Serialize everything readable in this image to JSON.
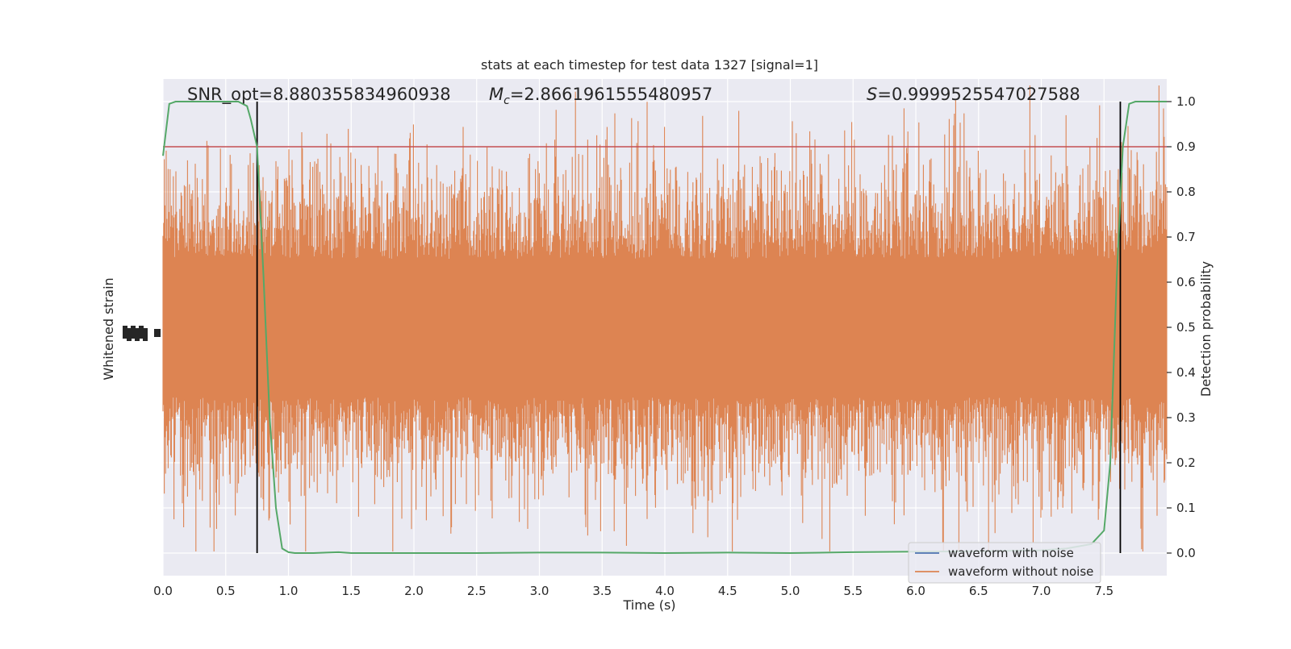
{
  "chart_data": {
    "type": "line",
    "title": "stats at each timestep for test data 1327 [signal=1]",
    "xlabel": "Time (s)",
    "ylabel_left": "Whitened strain",
    "ylabel_right": "Detection probability",
    "xlim": [
      0.0,
      8.0
    ],
    "ylim_right": [
      -0.05,
      1.05
    ],
    "x_ticks": [
      "0.0",
      "0.5",
      "1.0",
      "1.5",
      "2.0",
      "2.5",
      "3.0",
      "3.5",
      "4.0",
      "4.5",
      "5.0",
      "5.5",
      "6.0",
      "6.5",
      "7.0",
      "7.5"
    ],
    "y_ticks_right": [
      "0.0",
      "0.1",
      "0.2",
      "0.3",
      "0.4",
      "0.5",
      "0.6",
      "0.7",
      "0.8",
      "0.9",
      "1.0"
    ],
    "grid": true,
    "annotations": {
      "snr": "SNR_opt=8.880355834960938",
      "mc_symbol": "M",
      "mc_sub": "c",
      "mc_value": "=2.8661961555480957",
      "s_symbol": "S",
      "s_value": "=0.9999525547027588"
    },
    "threshold": 0.9,
    "vlines_x": [
      0.75,
      7.63
    ],
    "colors": {
      "background": "#eaeaf2",
      "grid": "#ffffff",
      "waveform_with_noise": "#4c72b0",
      "waveform_without_noise": "#dd8452",
      "probability": "#55a868",
      "threshold": "#c44e52",
      "vline": "#000000"
    },
    "series": [
      {
        "name": "waveform with noise",
        "values": []
      },
      {
        "name": "waveform without noise",
        "values": []
      },
      {
        "x": [
          0.0,
          0.05,
          0.1,
          0.2,
          0.3,
          0.4,
          0.5,
          0.6,
          0.67,
          0.7,
          0.75,
          0.8,
          0.85,
          0.9,
          0.95,
          1.0,
          1.05,
          1.1,
          1.2,
          1.3,
          1.4,
          1.5,
          2.0,
          2.5,
          3.0,
          3.5,
          4.0,
          4.5,
          5.0,
          5.5,
          6.0,
          6.5,
          7.0,
          7.2,
          7.3,
          7.4,
          7.5,
          7.55,
          7.6,
          7.65,
          7.7,
          7.75,
          7.8,
          7.9,
          8.0
        ],
        "values": [
          0.88,
          0.995,
          1.0,
          1.0,
          1.0,
          1.0,
          1.0,
          1.0,
          0.99,
          0.96,
          0.9,
          0.62,
          0.3,
          0.1,
          0.01,
          0.002,
          0.0,
          0.0,
          0.0,
          0.001,
          0.002,
          0.0,
          0.0,
          0.0,
          0.001,
          0.001,
          0.0,
          0.001,
          0.0,
          0.002,
          0.003,
          0.004,
          0.006,
          0.01,
          0.015,
          0.02,
          0.05,
          0.2,
          0.6,
          0.9,
          0.995,
          1.0,
          1.0,
          1.0,
          1.0
        ]
      }
    ],
    "legend": {
      "placement": "lower-right",
      "entries": [
        "waveform with noise",
        "waveform without noise"
      ]
    }
  }
}
